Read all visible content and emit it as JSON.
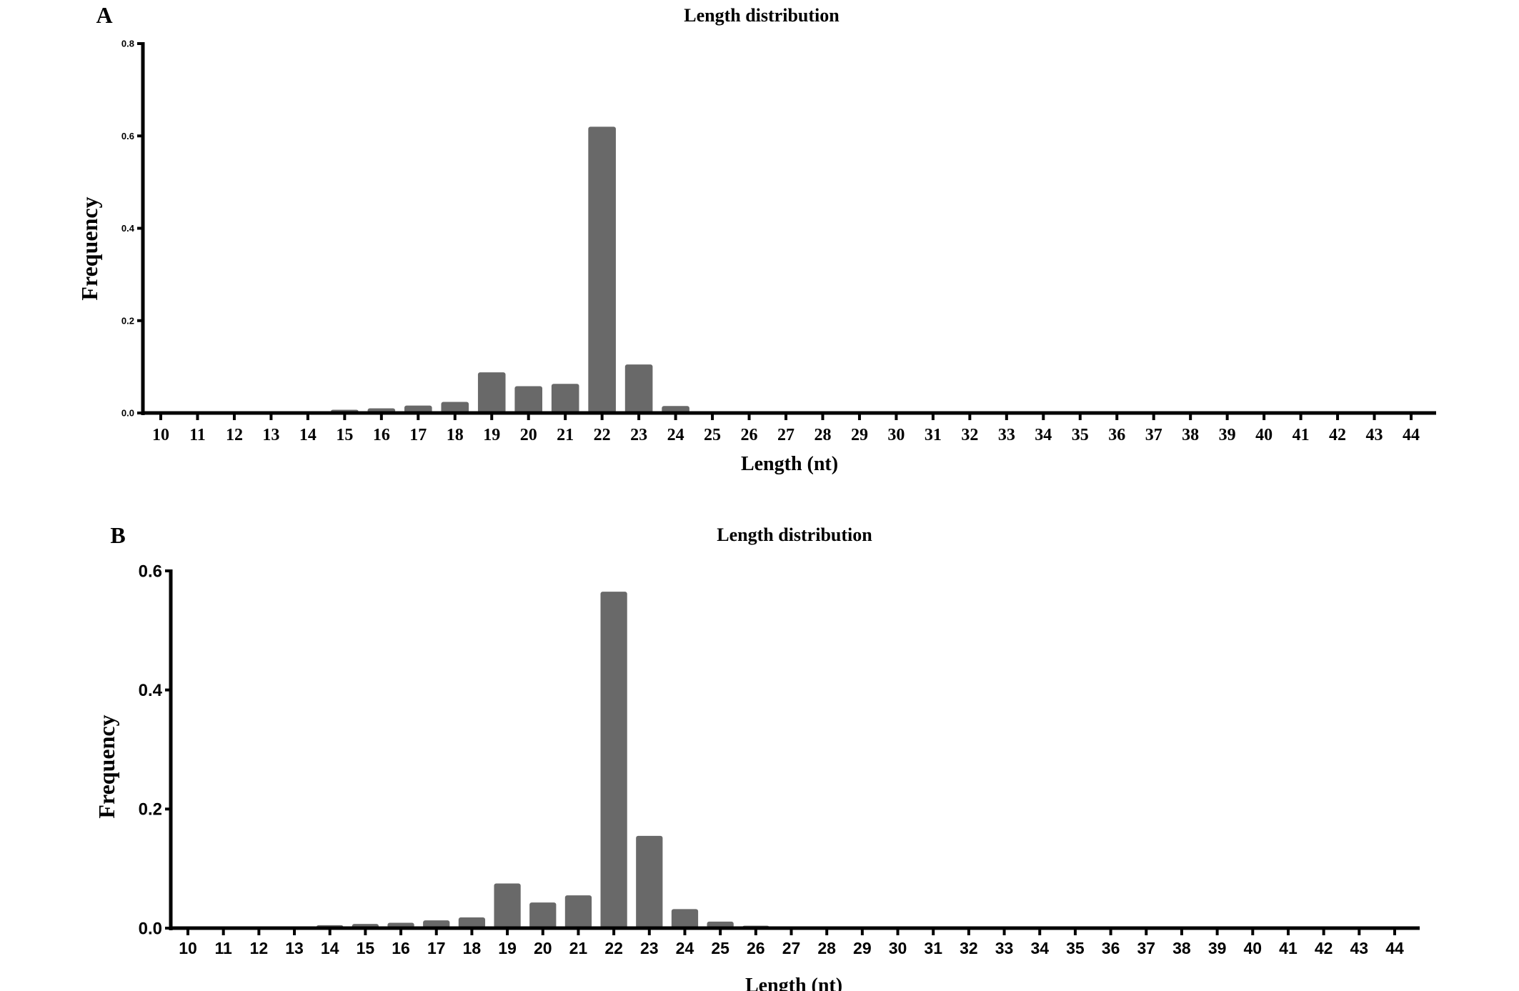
{
  "chart_data": [
    {
      "type": "bar",
      "panel_label": "A",
      "title": "Length distribution",
      "xlabel": "Length (nt)",
      "ylabel": "Frequency",
      "ylim": [
        0,
        0.8
      ],
      "yticks": [
        "0.0",
        "0.2",
        "0.4",
        "0.6",
        "0.8"
      ],
      "grid": false,
      "bar_color": "#696969",
      "categories": [
        "10",
        "11",
        "12",
        "13",
        "14",
        "15",
        "16",
        "17",
        "18",
        "19",
        "20",
        "21",
        "22",
        "23",
        "24",
        "25",
        "26",
        "27",
        "28",
        "29",
        "30",
        "31",
        "32",
        "33",
        "34",
        "35",
        "36",
        "37",
        "38",
        "39",
        "40",
        "41",
        "42",
        "43",
        "44"
      ],
      "values": [
        0,
        0,
        0,
        0,
        0.003,
        0.007,
        0.01,
        0.016,
        0.024,
        0.088,
        0.058,
        0.063,
        0.62,
        0.105,
        0.015,
        0.002,
        0,
        0,
        0,
        0,
        0,
        0,
        0,
        0,
        0,
        0,
        0,
        0,
        0,
        0,
        0,
        0,
        0,
        0,
        0
      ]
    },
    {
      "type": "bar",
      "panel_label": "B",
      "title": "Length distribution",
      "xlabel": "Length (nt)",
      "ylabel": "Frequency",
      "ylim": [
        0,
        0.6
      ],
      "yticks": [
        "0.0",
        "0.2",
        "0.4",
        "0.6"
      ],
      "grid": false,
      "bar_color": "#696969",
      "categories": [
        "10",
        "11",
        "12",
        "13",
        "14",
        "15",
        "16",
        "17",
        "18",
        "19",
        "20",
        "21",
        "22",
        "23",
        "24",
        "25",
        "26",
        "27",
        "28",
        "29",
        "30",
        "31",
        "32",
        "33",
        "34",
        "35",
        "36",
        "37",
        "38",
        "39",
        "40",
        "41",
        "42",
        "43",
        "44"
      ],
      "values": [
        0,
        0,
        0,
        0.001,
        0.005,
        0.007,
        0.009,
        0.013,
        0.018,
        0.075,
        0.043,
        0.055,
        0.565,
        0.155,
        0.032,
        0.011,
        0.004,
        0.003,
        0.002,
        0,
        0,
        0,
        0,
        0,
        0,
        0,
        0,
        0,
        0,
        0,
        0,
        0,
        0,
        0,
        0
      ]
    }
  ]
}
